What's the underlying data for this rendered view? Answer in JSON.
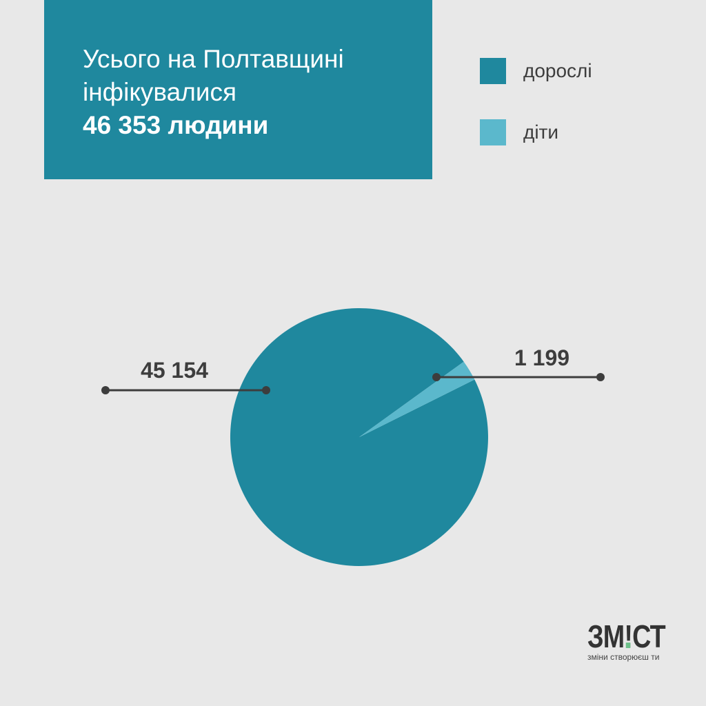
{
  "colors": {
    "background": "#e8e8e8",
    "adults": "#1f889e",
    "children": "#5bb8cc",
    "leader": "#3d3d3d",
    "logo_accent": "#6ec18b"
  },
  "header": {
    "line1": "Усього на Полтавщині",
    "line2": "інфікувалися",
    "line3": "46 353 людини"
  },
  "legend": [
    {
      "label": "дорослі",
      "color": "#1f889e"
    },
    {
      "label": "діти",
      "color": "#5bb8cc"
    }
  ],
  "chart_data": {
    "type": "pie",
    "categories": [
      "дорослі",
      "діти"
    ],
    "values": [
      45154,
      1199
    ],
    "data_labels": [
      "45 154",
      "1 199"
    ],
    "legend_position": "top-right"
  },
  "logo": {
    "wordmark_pre": "ЗМ",
    "wordmark_excl": "!",
    "wordmark_post": "СТ",
    "tagline": "зміни створюєш ти"
  }
}
